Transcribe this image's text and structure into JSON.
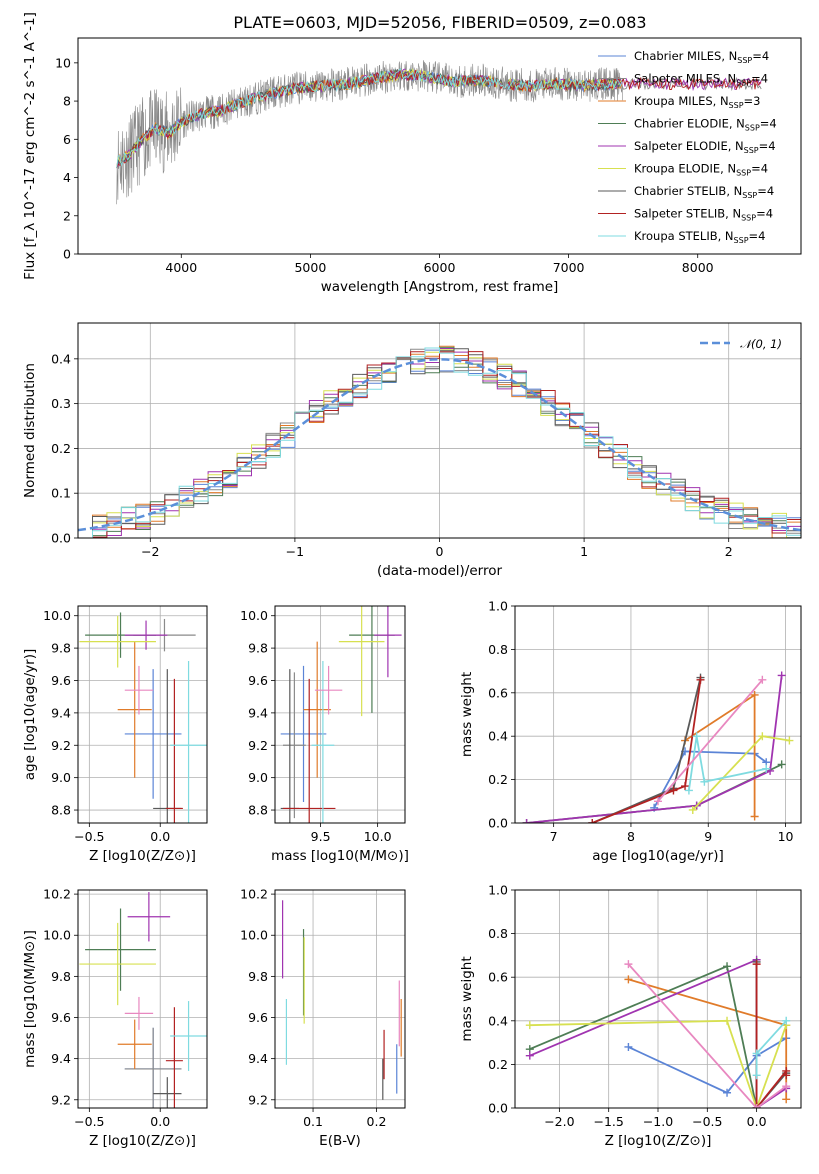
{
  "figure": {
    "title": "PLATE=0603, MJD=52056, FIBERID=0509, z=0.083",
    "colors": {
      "Chabrier MILES": "#5b84d6",
      "Salpeter MILES": "#8a8a8a",
      "Kroupa MILES": "#e07b2a",
      "Chabrier ELODIE": "#4e7d55",
      "Salpeter ELODIE": "#a034b0",
      "Kroupa ELODIE": "#d7e050",
      "Chabrier STELIB": "#5a5a5a",
      "Salpeter STELIB": "#b22222",
      "Kroupa STELIB": "#7fdbe0",
      "data": "#888888",
      "pink": "#e888c0",
      "gaussian": "#5b8fd9",
      "grid": "#b0b0b0"
    }
  },
  "chart_data": [
    {
      "id": "spectrum",
      "type": "line",
      "xlabel": "wavelength [Angstrom, rest frame]",
      "ylabel": "Flux [f_λ 10^-17 erg cm^-2 s^-1 A^-1]",
      "xlim": [
        3200,
        8800
      ],
      "ylim": [
        0,
        11.3
      ],
      "xticks": [
        4000,
        5000,
        6000,
        7000,
        8000
      ],
      "yticks": [
        0,
        2,
        4,
        6,
        8,
        10
      ],
      "grid": false,
      "legend_position": "right",
      "legend": [
        {
          "name": "Chabrier MILES",
          "label": "Chabrier MILES, N",
          "sub": "SSP",
          "tail": "=4"
        },
        {
          "name": "Salpeter MILES",
          "label": "Salpeter MILES, N",
          "sub": "SSP",
          "tail": "=4"
        },
        {
          "name": "Kroupa MILES",
          "label": "Kroupa MILES, N",
          "sub": "SSP",
          "tail": "=3"
        },
        {
          "name": "Chabrier ELODIE",
          "label": "Chabrier ELODIE, N",
          "sub": "SSP",
          "tail": "=4"
        },
        {
          "name": "Salpeter ELODIE",
          "label": "Salpeter ELODIE, N",
          "sub": "SSP",
          "tail": "=4"
        },
        {
          "name": "Kroupa ELODIE",
          "label": "Kroupa ELODIE, N",
          "sub": "SSP",
          "tail": "=4"
        },
        {
          "name": "Chabrier STELIB",
          "label": "Chabrier STELIB, N",
          "sub": "SSP",
          "tail": "=4"
        },
        {
          "name": "Salpeter STELIB",
          "label": "Salpeter STELIB, N",
          "sub": "SSP",
          "tail": "=4"
        },
        {
          "name": "Kroupa STELIB",
          "label": "Kroupa STELIB, N",
          "sub": "SSP",
          "tail": "=4"
        }
      ],
      "continuum_knots": [
        [
          3500,
          4.8
        ],
        [
          3600,
          5.2
        ],
        [
          3700,
          6.0
        ],
        [
          3800,
          6.6
        ],
        [
          3900,
          6.3
        ],
        [
          4000,
          6.9
        ],
        [
          4100,
          7.2
        ],
        [
          4200,
          7.4
        ],
        [
          4300,
          7.5
        ],
        [
          4500,
          8.0
        ],
        [
          4700,
          8.4
        ],
        [
          4900,
          8.7
        ],
        [
          5100,
          8.8
        ],
        [
          5300,
          8.9
        ],
        [
          5500,
          9.2
        ],
        [
          5700,
          9.4
        ],
        [
          5900,
          9.3
        ],
        [
          6100,
          9.0
        ],
        [
          6300,
          9.1
        ],
        [
          6500,
          8.9
        ],
        [
          6700,
          8.8
        ],
        [
          6900,
          8.9
        ],
        [
          7100,
          8.8
        ],
        [
          7300,
          8.9
        ],
        [
          7420,
          8.9
        ]
      ],
      "data_range": [
        3500,
        7420
      ],
      "model_range": [
        3500,
        8500
      ]
    },
    {
      "id": "residual_hist",
      "type": "histogram",
      "xlabel": "(data-model)/error",
      "ylabel": "Normed distribution",
      "xlim": [
        -2.5,
        2.5
      ],
      "ylim": [
        0,
        0.48
      ],
      "xticks": [
        -2,
        -1,
        0,
        1,
        2
      ],
      "yticks": [
        0.0,
        0.1,
        0.2,
        0.3,
        0.4
      ],
      "grid": true,
      "legend_label": "𝒩(0, 1)",
      "legend_position": "upper right",
      "bin_width": 0.1,
      "gaussian": {
        "mean": 0,
        "sigma": 1
      }
    },
    {
      "id": "age_vs_Z",
      "type": "errorbar",
      "xlabel": "Z [log10(Z/Z⊙)]",
      "ylabel": "age [log10(age/yr)]",
      "xlim": [
        -0.58,
        0.33
      ],
      "ylim": [
        8.72,
        10.06
      ],
      "xticks": [
        -0.5,
        0.0
      ],
      "yticks": [
        8.8,
        9.0,
        9.2,
        9.4,
        9.6,
        9.8,
        10.0
      ],
      "grid": true,
      "points": [
        {
          "c": "Chabrier MILES",
          "x": -0.05,
          "xerr": 0.2,
          "y": 9.27,
          "yerr": 0.4
        },
        {
          "c": "Salpeter MILES",
          "x": 0.03,
          "xerr": 0.22,
          "y": 9.88,
          "yerr": 0.1
        },
        {
          "c": "Kroupa MILES",
          "x": -0.18,
          "xerr": 0.12,
          "y": 9.42,
          "yerr": 0.42
        },
        {
          "c": "Chabrier ELODIE",
          "x": -0.28,
          "xerr": 0.25,
          "y": 9.88,
          "yerr": 0.14
        },
        {
          "c": "Salpeter ELODIE",
          "x": -0.1,
          "xerr": 0.15,
          "y": 9.88,
          "yerr": 0.09
        },
        {
          "c": "Kroupa ELODIE",
          "x": -0.3,
          "xerr": 0.27,
          "y": 9.84,
          "yerr": 0.16
        },
        {
          "c": "Chabrier STELIB",
          "x": 0.05,
          "xerr": 0.1,
          "y": 8.81,
          "yerr": 0.86
        },
        {
          "c": "Salpeter STELIB",
          "x": 0.1,
          "xerr": 0.06,
          "y": 8.81,
          "yerr": 0.8
        },
        {
          "c": "Kroupa STELIB",
          "x": 0.2,
          "xerr": 0.13,
          "y": 9.2,
          "yerr": 0.52
        },
        {
          "c": "pink",
          "x": -0.15,
          "xerr": 0.1,
          "y": 9.54,
          "yerr": 0.15
        }
      ]
    },
    {
      "id": "age_vs_mass",
      "type": "errorbar",
      "xlabel": "mass [log10(M/M⊙)]",
      "ylabel": "",
      "xlim": [
        9.1,
        10.24
      ],
      "ylim": [
        8.72,
        10.06
      ],
      "xticks": [
        9.5,
        10.0
      ],
      "yticks": [
        8.8,
        9.0,
        9.2,
        9.4,
        9.6,
        9.8,
        10.0
      ],
      "grid": true,
      "points": [
        {
          "c": "Chabrier MILES",
          "x": 9.35,
          "xerr": 0.2,
          "y": 9.27,
          "yerr": 0.42
        },
        {
          "c": "Salpeter MILES",
          "x": 9.27,
          "xerr": 0.1,
          "y": 9.2,
          "yerr": 0.45
        },
        {
          "c": "Kroupa MILES",
          "x": 9.47,
          "xerr": 0.12,
          "y": 9.42,
          "yerr": 0.42
        },
        {
          "c": "Chabrier ELODIE",
          "x": 9.95,
          "xerr": 0.2,
          "y": 9.88,
          "yerr": 0.48
        },
        {
          "c": "Salpeter ELODIE",
          "x": 10.09,
          "xerr": 0.12,
          "y": 9.88,
          "yerr": 0.26
        },
        {
          "c": "Kroupa ELODIE",
          "x": 9.86,
          "xerr": 0.2,
          "y": 9.84,
          "yerr": 0.46
        },
        {
          "c": "Chabrier STELIB",
          "x": 9.23,
          "xerr": 0.08,
          "y": 8.81,
          "yerr": 0.86
        },
        {
          "c": "Salpeter STELIB",
          "x": 9.4,
          "xerr": 0.23,
          "y": 8.81,
          "yerr": 0.8
        },
        {
          "c": "Kroupa STELIB",
          "x": 9.52,
          "xerr": 0.1,
          "y": 9.2,
          "yerr": 0.52
        },
        {
          "c": "pink",
          "x": 9.57,
          "xerr": 0.12,
          "y": 9.54,
          "yerr": 0.15
        }
      ]
    },
    {
      "id": "weight_vs_age",
      "type": "line",
      "xlabel": "age [log10(age/yr)]",
      "ylabel": "mass weight",
      "xlim": [
        6.5,
        10.2
      ],
      "ylim": [
        0,
        1.0
      ],
      "xticks": [
        7,
        8,
        9,
        10
      ],
      "yticks": [
        0.0,
        0.2,
        0.4,
        0.6,
        0.8,
        1.0
      ],
      "grid": true,
      "series": [
        {
          "c": "Chabrier MILES",
          "x": [
            8.3,
            8.7,
            9.6,
            9.75
          ],
          "y": [
            0.07,
            0.33,
            0.32,
            0.28
          ]
        },
        {
          "c": "Kroupa MILES",
          "x": [
            8.7,
            9.6,
            9.6
          ],
          "y": [
            0.38,
            0.59,
            0.03
          ]
        },
        {
          "c": "Chabrier ELODIE",
          "x": [
            6.65,
            8.85,
            9.95
          ],
          "y": [
            0.0,
            0.08,
            0.27
          ]
        },
        {
          "c": "Salpeter ELODIE",
          "x": [
            6.65,
            8.85,
            9.8,
            9.95
          ],
          "y": [
            0.0,
            0.08,
            0.24,
            0.68
          ]
        },
        {
          "c": "Kroupa ELODIE",
          "x": [
            8.8,
            9.7,
            10.05
          ],
          "y": [
            0.06,
            0.4,
            0.38
          ]
        },
        {
          "c": "Chabrier STELIB",
          "x": [
            7.5,
            8.55,
            8.9
          ],
          "y": [
            0.0,
            0.16,
            0.67
          ]
        },
        {
          "c": "Salpeter STELIB",
          "x": [
            7.5,
            8.55,
            8.7,
            8.9
          ],
          "y": [
            0.0,
            0.15,
            0.17,
            0.66
          ]
        },
        {
          "c": "Kroupa STELIB",
          "x": [
            8.75,
            8.85,
            8.95,
            9.75
          ],
          "y": [
            0.15,
            0.4,
            0.19,
            0.25
          ]
        },
        {
          "c": "pink",
          "x": [
            8.35,
            9.7
          ],
          "y": [
            0.1,
            0.66
          ]
        }
      ]
    },
    {
      "id": "mass_vs_Z",
      "type": "errorbar",
      "xlabel": "Z [log10(Z/Z⊙)]",
      "ylabel": "mass [log10(M/M⊙)]",
      "xlim": [
        -0.58,
        0.33
      ],
      "ylim": [
        9.16,
        10.22
      ],
      "xticks": [
        -0.5,
        0.0
      ],
      "yticks": [
        9.2,
        9.4,
        9.6,
        9.8,
        10.0,
        10.2
      ],
      "grid": true,
      "points": [
        {
          "c": "Chabrier MILES",
          "x": -0.05,
          "xerr": 0.2,
          "y": 9.35,
          "yerr": 0.2
        },
        {
          "c": "Salpeter MILES",
          "x": -0.05,
          "xerr": 0.2,
          "y": 9.35,
          "yerr": 0.2
        },
        {
          "c": "Kroupa MILES",
          "x": -0.18,
          "xerr": 0.12,
          "y": 9.47,
          "yerr": 0.12
        },
        {
          "c": "Chabrier ELODIE",
          "x": -0.28,
          "xerr": 0.25,
          "y": 9.93,
          "yerr": 0.2
        },
        {
          "c": "Salpeter ELODIE",
          "x": -0.08,
          "xerr": 0.15,
          "y": 10.09,
          "yerr": 0.12
        },
        {
          "c": "Kroupa ELODIE",
          "x": -0.3,
          "xerr": 0.27,
          "y": 9.86,
          "yerr": 0.2
        },
        {
          "c": "Chabrier STELIB",
          "x": 0.05,
          "xerr": 0.1,
          "y": 9.23,
          "yerr": 0.08
        },
        {
          "c": "Salpeter STELIB",
          "x": 0.1,
          "xerr": 0.06,
          "y": 9.39,
          "yerr": 0.26
        },
        {
          "c": "Kroupa STELIB",
          "x": 0.2,
          "xerr": 0.13,
          "y": 9.51,
          "yerr": 0.17
        },
        {
          "c": "pink",
          "x": -0.15,
          "xerr": 0.1,
          "y": 9.62,
          "yerr": 0.08
        }
      ]
    },
    {
      "id": "mass_vs_EBV",
      "type": "errorbar",
      "xlabel": "E(B-V)",
      "ylabel": "",
      "xlim": [
        0.04,
        0.245
      ],
      "ylim": [
        9.16,
        10.22
      ],
      "xticks": [
        0.1,
        0.2
      ],
      "yticks": [
        9.2,
        9.4,
        9.6,
        9.8,
        10.0,
        10.2
      ],
      "grid": true,
      "points": [
        {
          "c": "Salpeter ELODIE",
          "x": 0.052,
          "y": 9.98,
          "yerr": 0.19
        },
        {
          "c": "Kroupa STELIB",
          "x": 0.058,
          "y": 9.53,
          "yerr": 0.16
        },
        {
          "c": "Chabrier ELODIE",
          "x": 0.085,
          "y": 9.82,
          "yerr": 0.21
        },
        {
          "c": "Kroupa ELODIE",
          "x": 0.086,
          "y": 9.78,
          "yerr": 0.21
        },
        {
          "c": "Chabrier STELIB",
          "x": 0.21,
          "y": 9.3,
          "yerr": 0.1
        },
        {
          "c": "Salpeter STELIB",
          "x": 0.212,
          "y": 9.42,
          "yerr": 0.12
        },
        {
          "c": "Chabrier MILES",
          "x": 0.232,
          "y": 9.35,
          "yerr": 0.12
        },
        {
          "c": "pink",
          "x": 0.236,
          "y": 9.62,
          "yerr": 0.16
        },
        {
          "c": "Kroupa MILES",
          "x": 0.239,
          "y": 9.55,
          "yerr": 0.14
        }
      ]
    },
    {
      "id": "weight_vs_Z",
      "type": "line",
      "xlabel": "Z [log10(Z/Z⊙)]",
      "ylabel": "mass weight",
      "xlim": [
        -2.45,
        0.45
      ],
      "ylim": [
        0,
        1.0
      ],
      "xticks": [
        -2.0,
        -1.5,
        -1.0,
        -0.5,
        0.0
      ],
      "yticks": [
        0.0,
        0.2,
        0.4,
        0.6,
        0.8,
        1.0
      ],
      "grid": true,
      "series": [
        {
          "c": "Chabrier MILES",
          "x": [
            -1.3,
            -0.3,
            0.0,
            0.3
          ],
          "y": [
            0.28,
            0.07,
            0.24,
            0.32
          ]
        },
        {
          "c": "Kroupa MILES",
          "x": [
            -1.3,
            0.3,
            0.3
          ],
          "y": [
            0.59,
            0.38,
            0.04
          ]
        },
        {
          "c": "Chabrier ELODIE",
          "x": [
            -2.3,
            -0.3,
            0.0
          ],
          "y": [
            0.27,
            0.65,
            0.0
          ]
        },
        {
          "c": "Salpeter ELODIE",
          "x": [
            -2.3,
            0.0,
            0.0,
            0.3
          ],
          "y": [
            0.24,
            0.68,
            0.0,
            0.09
          ]
        },
        {
          "c": "Kroupa ELODIE",
          "x": [
            -2.3,
            -0.3,
            0.0,
            0.3
          ],
          "y": [
            0.38,
            0.4,
            0.0,
            0.38
          ]
        },
        {
          "c": "Chabrier STELIB",
          "x": [
            0.0,
            0.0,
            0.3
          ],
          "y": [
            0.67,
            0.0,
            0.16
          ]
        },
        {
          "c": "Salpeter STELIB",
          "x": [
            0.0,
            0.0,
            0.3,
            0.3
          ],
          "y": [
            0.66,
            0.0,
            0.17,
            0.15
          ]
        },
        {
          "c": "Kroupa STELIB",
          "x": [
            0.0,
            0.0,
            0.3
          ],
          "y": [
            0.15,
            0.25,
            0.4
          ]
        },
        {
          "c": "pink",
          "x": [
            -1.3,
            0.0,
            0.3
          ],
          "y": [
            0.66,
            0.0,
            0.1
          ]
        }
      ]
    }
  ]
}
